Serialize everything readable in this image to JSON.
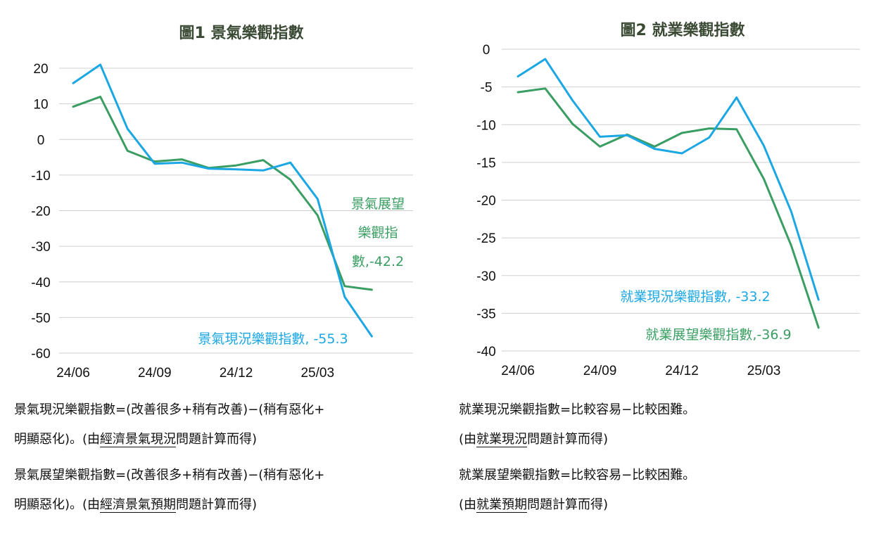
{
  "colors": {
    "blue": "#1ba7e4",
    "green": "#3a9e63",
    "title": "#3b4a35"
  },
  "chart_data": [
    {
      "type": "line",
      "title": "圖1  景氣樂觀指數",
      "x": [
        "24/06",
        "24/07",
        "24/08",
        "24/09",
        "24/10",
        "24/11",
        "24/12",
        "25/01",
        "25/02",
        "25/03",
        "25/04",
        "25/05",
        "25/06"
      ],
      "xticks": [
        "24/06",
        "24/09",
        "24/12",
        "25/03"
      ],
      "yticks": [
        20,
        10,
        0,
        -10,
        -20,
        -30,
        -40,
        -50,
        -60
      ],
      "ylim": [
        -60,
        20
      ],
      "grid": true,
      "series": [
        {
          "name": "景氣現況樂觀指數",
          "color": "#1ba7e4",
          "values": [
            15.8,
            21.0,
            3.0,
            -6.8,
            -6.5,
            -8.2,
            -8.4,
            -8.7,
            -6.5,
            -16.7,
            -44.2,
            -55.3,
            null
          ]
        },
        {
          "name": "景氣展望樂觀指數",
          "color": "#3a9e63",
          "values": [
            9.2,
            12.0,
            -3.2,
            -6.2,
            -5.6,
            -8.0,
            -7.3,
            -5.8,
            -11.3,
            -21.3,
            -41.2,
            -42.2,
            null
          ]
        }
      ],
      "labels": {
        "blue": "景氣現況樂觀指數, -55.3",
        "green_lines": [
          "景氣展望",
          "樂觀指",
          "數,-42.2"
        ]
      }
    },
    {
      "type": "line",
      "title": "圖2  就業樂觀指數",
      "x": [
        "24/06",
        "24/07",
        "24/08",
        "24/09",
        "24/10",
        "24/11",
        "24/12",
        "25/01",
        "25/02",
        "25/03",
        "25/04",
        "25/05",
        "25/06"
      ],
      "xticks": [
        "24/06",
        "24/09",
        "24/12",
        "25/03"
      ],
      "yticks": [
        0,
        -5,
        -10,
        -15,
        -20,
        -25,
        -30,
        -35,
        -40
      ],
      "ylim": [
        -40,
        0
      ],
      "grid": true,
      "series": [
        {
          "name": "就業現況樂觀指數",
          "color": "#1ba7e4",
          "values": [
            -3.6,
            -1.3,
            -6.8,
            -11.6,
            -11.4,
            -13.2,
            -13.8,
            -11.7,
            -6.4,
            -12.8,
            -21.5,
            -33.2,
            null
          ]
        },
        {
          "name": "就業展望樂觀指數",
          "color": "#3a9e63",
          "values": [
            -5.7,
            -5.2,
            -9.9,
            -12.9,
            -11.3,
            -12.9,
            -11.1,
            -10.5,
            -10.6,
            -17.2,
            -26.0,
            -36.9,
            null
          ]
        }
      ],
      "labels": {
        "blue": "就業現況樂觀指數, -33.2",
        "green": "就業展望樂觀指數,-36.9"
      }
    }
  ],
  "notes": {
    "left": {
      "n1_line1": "景氣現況樂觀指數=(改善很多+稍有改善)−(稍有惡化+",
      "n1_line2_pre": "明顯惡化)。(由",
      "n1_line2_ul": "經濟景氣現況",
      "n1_line2_post": "問題計算而得)",
      "n2_line1": "景氣展望樂觀指數=(改善很多+稍有改善)−(稍有惡化+",
      "n2_line2_pre": "明顯惡化)。(由",
      "n2_line2_ul": "經濟景氣預期",
      "n2_line2_post": "問題計算而得)"
    },
    "right": {
      "n1_line1": "就業現況樂觀指數=比較容易−比較困難。",
      "n1_line2_pre": "(由",
      "n1_line2_ul": "就業現況",
      "n1_line2_post": "問題計算而得)",
      "n2_line1": "就業展望樂觀指數=比較容易−比較困難。",
      "n2_line2_pre": "(由",
      "n2_line2_ul": "就業預期",
      "n2_line2_post": "問題計算而得)"
    }
  }
}
